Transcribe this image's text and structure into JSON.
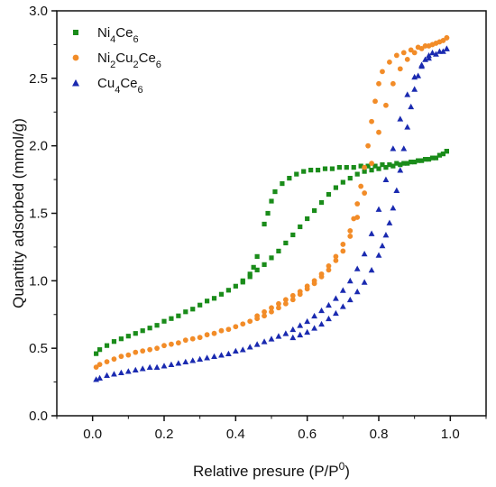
{
  "chart_data": {
    "type": "scatter",
    "xlabel": "Relative presure (P/P0)",
    "ylabel": "Quantity adsorbed (mmol/g)",
    "xlim": [
      -0.1,
      1.1
    ],
    "ylim": [
      0.0,
      3.0
    ],
    "xticks": [
      "0.0",
      "0.2",
      "0.4",
      "0.6",
      "0.8",
      "1.0"
    ],
    "yticks": [
      "0.0",
      "0.5",
      "1.0",
      "1.5",
      "2.0",
      "2.5",
      "3.0"
    ],
    "legend_position": "top-left",
    "grid": false,
    "series": [
      {
        "name": "Ni4Ce6",
        "label_main": "Ni",
        "label_parts": [
          [
            "Ni",
            ""
          ],
          [
            "4",
            "sub"
          ],
          [
            "Ce",
            ""
          ],
          [
            "6",
            "sub"
          ]
        ],
        "marker": "square",
        "color": "#1a8c1a",
        "adsorption": [
          [
            0.01,
            0.46
          ],
          [
            0.02,
            0.49
          ],
          [
            0.04,
            0.52
          ],
          [
            0.06,
            0.55
          ],
          [
            0.08,
            0.57
          ],
          [
            0.1,
            0.59
          ],
          [
            0.12,
            0.61
          ],
          [
            0.14,
            0.63
          ],
          [
            0.16,
            0.65
          ],
          [
            0.18,
            0.67
          ],
          [
            0.2,
            0.7
          ],
          [
            0.22,
            0.72
          ],
          [
            0.24,
            0.74
          ],
          [
            0.26,
            0.77
          ],
          [
            0.28,
            0.79
          ],
          [
            0.3,
            0.82
          ],
          [
            0.32,
            0.85
          ],
          [
            0.34,
            0.87
          ],
          [
            0.36,
            0.9
          ],
          [
            0.38,
            0.93
          ],
          [
            0.4,
            0.96
          ],
          [
            0.42,
            0.99
          ],
          [
            0.44,
            1.03
          ],
          [
            0.46,
            1.08
          ],
          [
            0.48,
            1.12
          ],
          [
            0.5,
            1.17
          ],
          [
            0.52,
            1.22
          ],
          [
            0.54,
            1.28
          ],
          [
            0.56,
            1.34
          ],
          [
            0.58,
            1.4
          ],
          [
            0.6,
            1.46
          ],
          [
            0.62,
            1.52
          ],
          [
            0.64,
            1.58
          ],
          [
            0.66,
            1.64
          ],
          [
            0.68,
            1.69
          ],
          [
            0.7,
            1.73
          ],
          [
            0.72,
            1.76
          ],
          [
            0.74,
            1.79
          ],
          [
            0.76,
            1.81
          ],
          [
            0.78,
            1.82
          ],
          [
            0.8,
            1.83
          ],
          [
            0.82,
            1.84
          ],
          [
            0.84,
            1.85
          ],
          [
            0.86,
            1.86
          ],
          [
            0.88,
            1.87
          ],
          [
            0.9,
            1.88
          ],
          [
            0.92,
            1.89
          ],
          [
            0.94,
            1.9
          ],
          [
            0.96,
            1.91
          ],
          [
            0.98,
            1.94
          ],
          [
            0.99,
            1.96
          ]
        ],
        "desorption": [
          [
            0.99,
            1.96
          ],
          [
            0.97,
            1.93
          ],
          [
            0.95,
            1.91
          ],
          [
            0.93,
            1.9
          ],
          [
            0.91,
            1.89
          ],
          [
            0.89,
            1.88
          ],
          [
            0.87,
            1.87
          ],
          [
            0.85,
            1.87
          ],
          [
            0.83,
            1.86
          ],
          [
            0.81,
            1.86
          ],
          [
            0.79,
            1.85
          ],
          [
            0.77,
            1.85
          ],
          [
            0.75,
            1.85
          ],
          [
            0.73,
            1.84
          ],
          [
            0.71,
            1.84
          ],
          [
            0.69,
            1.84
          ],
          [
            0.67,
            1.83
          ],
          [
            0.65,
            1.83
          ],
          [
            0.63,
            1.82
          ],
          [
            0.61,
            1.82
          ],
          [
            0.59,
            1.81
          ],
          [
            0.57,
            1.79
          ],
          [
            0.55,
            1.76
          ],
          [
            0.53,
            1.72
          ],
          [
            0.51,
            1.66
          ],
          [
            0.5,
            1.59
          ],
          [
            0.49,
            1.5
          ],
          [
            0.48,
            1.42
          ],
          [
            0.46,
            1.18
          ],
          [
            0.45,
            1.1
          ],
          [
            0.44,
            1.05
          ],
          [
            0.42,
            1.0
          ]
        ]
      },
      {
        "name": "Ni2Cu2Ce6",
        "label_main": "Ni",
        "label_parts": [
          [
            "Ni",
            ""
          ],
          [
            "2",
            "sub"
          ],
          [
            "Cu",
            ""
          ],
          [
            "2",
            "sub"
          ],
          [
            "Ce",
            ""
          ],
          [
            "6",
            "sub"
          ]
        ],
        "marker": "circle",
        "color": "#f28c28",
        "adsorption": [
          [
            0.01,
            0.36
          ],
          [
            0.02,
            0.38
          ],
          [
            0.04,
            0.4
          ],
          [
            0.06,
            0.42
          ],
          [
            0.08,
            0.44
          ],
          [
            0.1,
            0.45
          ],
          [
            0.12,
            0.47
          ],
          [
            0.14,
            0.48
          ],
          [
            0.16,
            0.49
          ],
          [
            0.18,
            0.5
          ],
          [
            0.2,
            0.52
          ],
          [
            0.22,
            0.53
          ],
          [
            0.24,
            0.54
          ],
          [
            0.26,
            0.56
          ],
          [
            0.28,
            0.57
          ],
          [
            0.3,
            0.58
          ],
          [
            0.32,
            0.6
          ],
          [
            0.34,
            0.61
          ],
          [
            0.36,
            0.63
          ],
          [
            0.38,
            0.64
          ],
          [
            0.4,
            0.66
          ],
          [
            0.42,
            0.68
          ],
          [
            0.44,
            0.7
          ],
          [
            0.46,
            0.72
          ],
          [
            0.48,
            0.74
          ],
          [
            0.5,
            0.77
          ],
          [
            0.52,
            0.8
          ],
          [
            0.54,
            0.83
          ],
          [
            0.56,
            0.86
          ],
          [
            0.58,
            0.9
          ],
          [
            0.6,
            0.94
          ],
          [
            0.62,
            0.98
          ],
          [
            0.64,
            1.03
          ],
          [
            0.66,
            1.08
          ],
          [
            0.68,
            1.15
          ],
          [
            0.7,
            1.22
          ],
          [
            0.72,
            1.33
          ],
          [
            0.74,
            1.47
          ],
          [
            0.76,
            1.65
          ],
          [
            0.78,
            1.87
          ],
          [
            0.8,
            2.1
          ],
          [
            0.82,
            2.3
          ],
          [
            0.84,
            2.46
          ],
          [
            0.86,
            2.57
          ],
          [
            0.88,
            2.64
          ],
          [
            0.9,
            2.69
          ],
          [
            0.92,
            2.72
          ],
          [
            0.94,
            2.74
          ],
          [
            0.96,
            2.76
          ],
          [
            0.98,
            2.78
          ],
          [
            0.99,
            2.8
          ]
        ],
        "desorption": [
          [
            0.99,
            2.8
          ],
          [
            0.97,
            2.77
          ],
          [
            0.95,
            2.75
          ],
          [
            0.93,
            2.74
          ],
          [
            0.91,
            2.73
          ],
          [
            0.89,
            2.71
          ],
          [
            0.87,
            2.69
          ],
          [
            0.85,
            2.67
          ],
          [
            0.83,
            2.62
          ],
          [
            0.81,
            2.55
          ],
          [
            0.8,
            2.46
          ],
          [
            0.79,
            2.33
          ],
          [
            0.78,
            2.18
          ],
          [
            0.77,
            2.0
          ],
          [
            0.76,
            1.84
          ],
          [
            0.75,
            1.7
          ],
          [
            0.74,
            1.57
          ],
          [
            0.73,
            1.46
          ],
          [
            0.72,
            1.37
          ],
          [
            0.7,
            1.27
          ],
          [
            0.68,
            1.18
          ],
          [
            0.66,
            1.11
          ],
          [
            0.64,
            1.05
          ],
          [
            0.62,
            1.0
          ],
          [
            0.6,
            0.96
          ],
          [
            0.58,
            0.92
          ],
          [
            0.56,
            0.89
          ],
          [
            0.54,
            0.86
          ],
          [
            0.52,
            0.83
          ],
          [
            0.5,
            0.8
          ],
          [
            0.48,
            0.77
          ],
          [
            0.46,
            0.74
          ]
        ]
      },
      {
        "name": "Cu4Ce6",
        "label_main": "Cu",
        "label_parts": [
          [
            "Cu",
            ""
          ],
          [
            "4",
            "sub"
          ],
          [
            "Ce",
            ""
          ],
          [
            "6",
            "sub"
          ]
        ],
        "marker": "triangle",
        "color": "#1a2ab0",
        "adsorption": [
          [
            0.01,
            0.27
          ],
          [
            0.02,
            0.28
          ],
          [
            0.04,
            0.3
          ],
          [
            0.06,
            0.31
          ],
          [
            0.08,
            0.32
          ],
          [
            0.1,
            0.33
          ],
          [
            0.12,
            0.34
          ],
          [
            0.14,
            0.35
          ],
          [
            0.16,
            0.36
          ],
          [
            0.18,
            0.36
          ],
          [
            0.2,
            0.37
          ],
          [
            0.22,
            0.38
          ],
          [
            0.24,
            0.39
          ],
          [
            0.26,
            0.4
          ],
          [
            0.28,
            0.41
          ],
          [
            0.3,
            0.42
          ],
          [
            0.32,
            0.43
          ],
          [
            0.34,
            0.44
          ],
          [
            0.36,
            0.45
          ],
          [
            0.38,
            0.46
          ],
          [
            0.4,
            0.48
          ],
          [
            0.42,
            0.49
          ],
          [
            0.44,
            0.51
          ],
          [
            0.46,
            0.53
          ],
          [
            0.48,
            0.55
          ],
          [
            0.5,
            0.57
          ],
          [
            0.52,
            0.59
          ],
          [
            0.54,
            0.61
          ],
          [
            0.56,
            0.64
          ],
          [
            0.58,
            0.67
          ],
          [
            0.6,
            0.7
          ],
          [
            0.62,
            0.74
          ],
          [
            0.64,
            0.78
          ],
          [
            0.66,
            0.82
          ],
          [
            0.68,
            0.87
          ],
          [
            0.7,
            0.93
          ],
          [
            0.72,
            1.0
          ],
          [
            0.74,
            1.09
          ],
          [
            0.76,
            1.2
          ],
          [
            0.78,
            1.35
          ],
          [
            0.8,
            1.53
          ],
          [
            0.82,
            1.75
          ],
          [
            0.84,
            1.98
          ],
          [
            0.86,
            2.2
          ],
          [
            0.88,
            2.38
          ],
          [
            0.9,
            2.51
          ],
          [
            0.92,
            2.6
          ],
          [
            0.94,
            2.65
          ],
          [
            0.96,
            2.68
          ],
          [
            0.98,
            2.7
          ],
          [
            0.99,
            2.72
          ]
        ],
        "desorption": [
          [
            0.99,
            2.72
          ],
          [
            0.97,
            2.7
          ],
          [
            0.95,
            2.69
          ],
          [
            0.94,
            2.67
          ],
          [
            0.93,
            2.64
          ],
          [
            0.92,
            2.59
          ],
          [
            0.91,
            2.52
          ],
          [
            0.9,
            2.42
          ],
          [
            0.89,
            2.29
          ],
          [
            0.88,
            2.14
          ],
          [
            0.87,
            1.98
          ],
          [
            0.86,
            1.82
          ],
          [
            0.85,
            1.67
          ],
          [
            0.84,
            1.54
          ],
          [
            0.83,
            1.43
          ],
          [
            0.82,
            1.34
          ],
          [
            0.81,
            1.26
          ],
          [
            0.8,
            1.19
          ],
          [
            0.78,
            1.08
          ],
          [
            0.76,
            0.99
          ],
          [
            0.74,
            0.92
          ],
          [
            0.72,
            0.86
          ],
          [
            0.7,
            0.81
          ],
          [
            0.68,
            0.76
          ],
          [
            0.66,
            0.72
          ],
          [
            0.64,
            0.68
          ],
          [
            0.62,
            0.65
          ],
          [
            0.6,
            0.62
          ],
          [
            0.58,
            0.6
          ],
          [
            0.56,
            0.58
          ]
        ]
      }
    ]
  }
}
